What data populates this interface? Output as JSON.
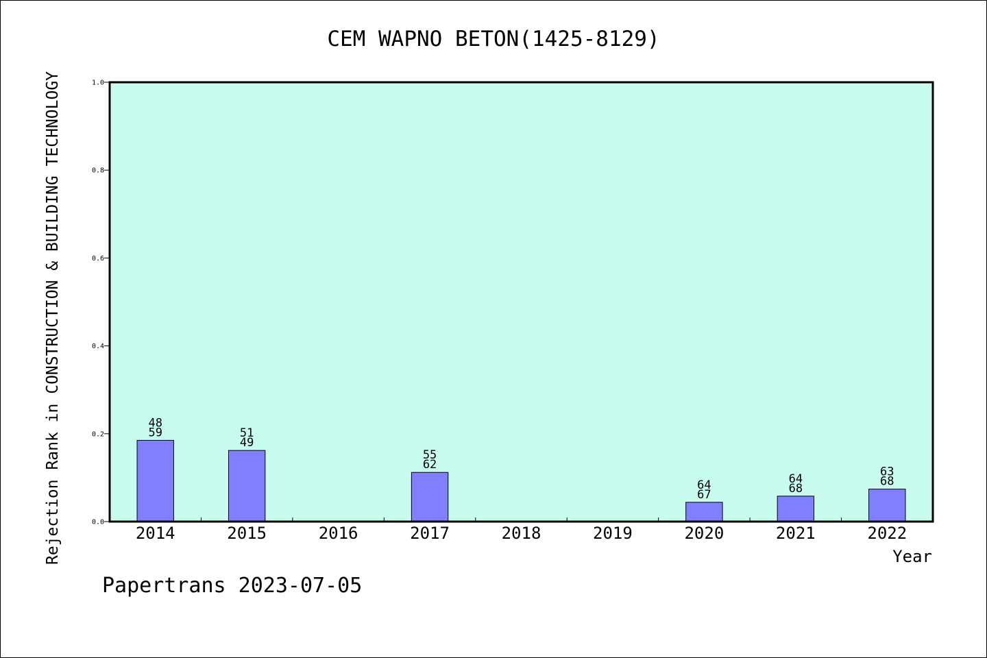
{
  "chart_data": {
    "type": "bar",
    "title": "CEM WAPNO BETON(1425-8129)",
    "xlabel": "Year",
    "ylabel": "Rejection Rank in CONSTRUCTION & BUILDING TECHNOLOGY",
    "categories": [
      "2014",
      "2015",
      "2016",
      "2017",
      "2018",
      "2019",
      "2020",
      "2021",
      "2022"
    ],
    "values": [
      0.185,
      0.162,
      null,
      0.112,
      null,
      null,
      0.044,
      0.058,
      0.074
    ],
    "bar_labels": [
      [
        "48",
        "59"
      ],
      [
        "51",
        "49"
      ],
      null,
      [
        "55",
        "62"
      ],
      null,
      null,
      [
        "64",
        "67"
      ],
      [
        "64",
        "68"
      ],
      [
        "63",
        "68"
      ]
    ],
    "ylim": [
      0,
      1.0
    ],
    "yticks": [
      "0.0",
      "0.2",
      "0.4",
      "0.6",
      "0.8",
      "1.0"
    ],
    "grid": false,
    "legend": "none",
    "colors": {
      "plot_background": "#c8fcee",
      "bar_fill": "#8080ff",
      "bar_stroke": "#000000"
    }
  },
  "footer": "Papertrans 2023-07-05"
}
